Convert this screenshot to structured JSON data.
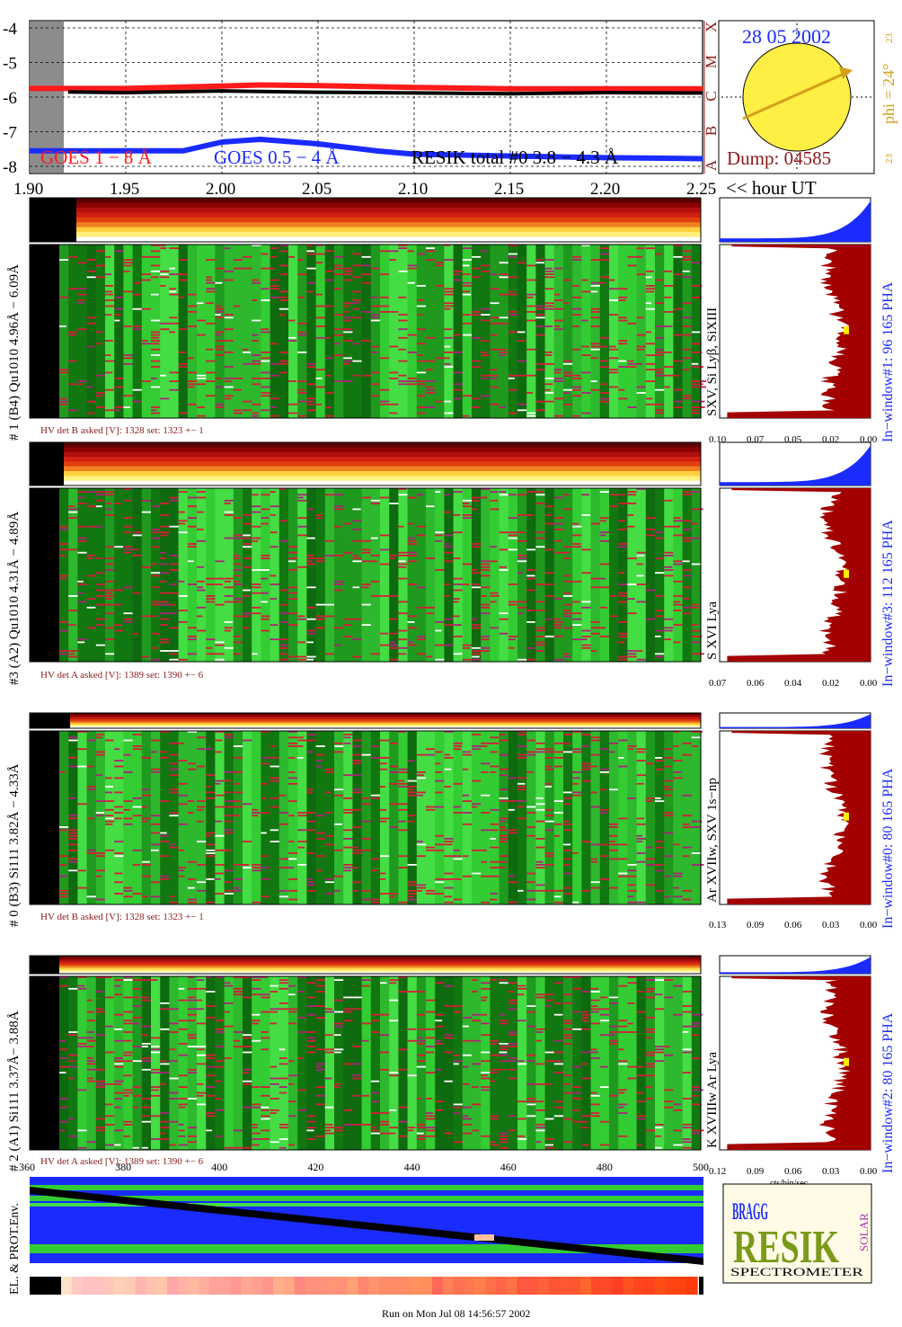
{
  "colors": {
    "goes_long": "#ff1a1a",
    "goes_short": "#1a2bff",
    "resik_total": "#000000",
    "axis_red": "#8b1a1a",
    "sun_fill": "#ffee44",
    "phi_color": "#d4a017",
    "window_label": "#1a2bff",
    "hist_fill": "#a30000",
    "hist_blue": "#1a2bff",
    "spectro_green": "#33cc33",
    "spectro_dark": "#117711"
  },
  "top_panel": {
    "y_ticks": [
      "-4",
      "-5",
      "-6",
      "-7",
      "-8"
    ],
    "x_ticks": [
      "1.90",
      "1.95",
      "2.00",
      "2.05",
      "2.10",
      "2.15",
      "2.20",
      "2.25"
    ],
    "x_unit": "<< hour UT",
    "class_letters": [
      "X",
      "M",
      "C",
      "B",
      "A"
    ],
    "legend": {
      "goes_long": "GOES 1 − 8 Å",
      "goes_short": "GOES 0.5 − 4 Å",
      "resik": "RESIK total #0  3.8 − 4.3 Å"
    }
  },
  "sun_panel": {
    "date": "28 05 2002",
    "phi": "phi = 24°",
    "phi_top": "23",
    "phi_bottom": "23",
    "dump": "Dump: 04585"
  },
  "detectors": [
    {
      "side_label": "# 1 (B4) Qu1010 4.96Å − 6.09Å",
      "line_label": "SXV, Si Lyβ, SiXIII",
      "hv": "HV det B asked [V]:  1328 set:  1323  +−    1",
      "window": "In−window#1:   96 165  PHA",
      "hist_ticks": [
        "0.10",
        "0.07",
        "0.05",
        "0.02",
        "0.00"
      ]
    },
    {
      "side_label": "#3 (A2) Qu1010  4.31Å − 4.89Å",
      "line_label": "S XVI Lya",
      "hv": "HV det A asked [V]:  1389 set:  1390  +−    6",
      "window": "In−window#3:  112 165  PHA",
      "hist_ticks": [
        "0.07",
        "0.06",
        "0.04",
        "0.02",
        "0.00"
      ]
    },
    {
      "side_label": "# 0 (B3) Si111  3.82Å − 4.33Å",
      "line_label": "Ar XVIIw, SXV 1s−np",
      "hv": "HV det B asked [V]:  1328 set:  1323  +−    1",
      "window": "In−window#0:   80 165  PHA",
      "hist_ticks": [
        "0.13",
        "0.09",
        "0.06",
        "0.03",
        "0.00"
      ]
    },
    {
      "side_label": "# 2 (A1) Si111  3.37Å− 3.88Å",
      "line_label": "K XVIIIw  Ar Lya",
      "hv": "HV det A asked [V]:  1389 set:  1390  +−    6",
      "window": "In−window#2:   80 165  PHA",
      "hist_ticks": [
        "0.12",
        "0.09",
        "0.06",
        "0.03",
        "0.00"
      ],
      "hist_unit": "cts/bin/sec"
    }
  ],
  "bottom_panel": {
    "x_ticks": [
      "360",
      "380",
      "400",
      "420",
      "440",
      "460",
      "480",
      "500"
    ],
    "side_label": "EL. & PROT.Env."
  },
  "logo": {
    "letters_big": "RESIK",
    "bragg": "BRAGG",
    "solar": "SOLAR",
    "subtitle": "SPECTROMETER"
  },
  "footer": "Run on Mon Jul 08 14:56:57 2002",
  "chart_data": {
    "type": "line",
    "x_unit": "hour UT",
    "xlim": [
      1.9,
      2.25
    ],
    "ylim": [
      -8,
      -4
    ],
    "y_scale": "log10 flux",
    "series": [
      {
        "name": "GOES 1 − 8 Å",
        "x": [
          1.9,
          1.95,
          2.0,
          2.02,
          2.05,
          2.1,
          2.15,
          2.2,
          2.25
        ],
        "y": [
          -5.75,
          -5.75,
          -5.68,
          -5.65,
          -5.67,
          -5.72,
          -5.76,
          -5.76,
          -5.76
        ]
      },
      {
        "name": "GOES 0.5 − 4 Å",
        "x": [
          1.9,
          1.95,
          1.98,
          2.0,
          2.02,
          2.05,
          2.08,
          2.1,
          2.15,
          2.2,
          2.25
        ],
        "y": [
          -7.55,
          -7.55,
          -7.55,
          -7.3,
          -7.22,
          -7.35,
          -7.55,
          -7.65,
          -7.7,
          -7.75,
          -7.78
        ]
      },
      {
        "name": "RESIK total #0  3.8 − 4.3 Å",
        "x": [
          1.92,
          1.95,
          2.0,
          2.05,
          2.1,
          2.15,
          2.2,
          2.25
        ],
        "y": [
          -5.85,
          -5.87,
          -5.82,
          -5.86,
          -5.88,
          -5.9,
          -5.87,
          -5.88
        ]
      }
    ]
  }
}
